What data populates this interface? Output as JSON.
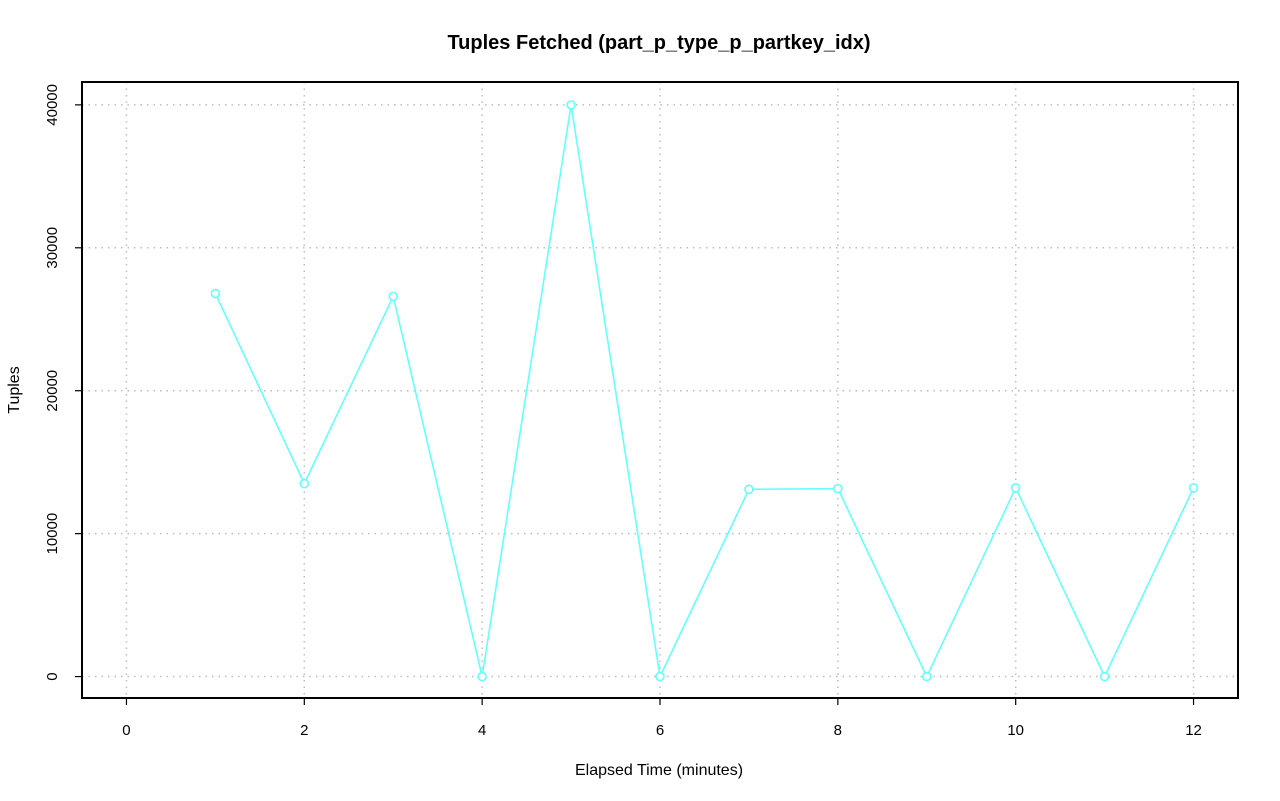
{
  "chart_data": {
    "type": "line",
    "title": "Tuples Fetched (part_p_type_p_partkey_idx)",
    "xlabel": "Elapsed Time (minutes)",
    "ylabel": "Tuples",
    "xlim": [
      -0.5,
      12.5
    ],
    "ylim": [
      -1500,
      41600
    ],
    "xticks": [
      0,
      2,
      4,
      6,
      8,
      10,
      12
    ],
    "yticks": [
      0,
      10000,
      20000,
      30000,
      40000
    ],
    "grid": true,
    "series": [
      {
        "color": "#66ffff",
        "marker": "open-circle",
        "x": [
          1,
          2,
          3,
          4,
          5,
          6,
          7,
          8,
          9,
          10,
          11,
          12
        ],
        "y": [
          26800,
          13500,
          26600,
          0,
          40000,
          0,
          13100,
          13150,
          0,
          13200,
          0,
          13200
        ]
      }
    ]
  }
}
